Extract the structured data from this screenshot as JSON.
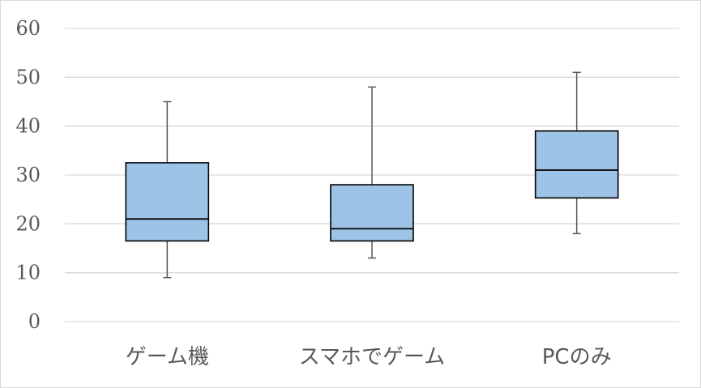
{
  "chart_data": {
    "type": "box",
    "categories": [
      "ゲーム機",
      "スマホでゲーム",
      "PCのみ"
    ],
    "series": [
      {
        "boxes": [
          {
            "category": "ゲーム機",
            "min": 9,
            "q1": 16.5,
            "median": 21,
            "q3": 32.5,
            "max": 45
          },
          {
            "category": "スマホでゲーム",
            "min": 13,
            "q1": 16.5,
            "median": 19,
            "q3": 28,
            "max": 48
          },
          {
            "category": "PCのみ",
            "min": 18,
            "q1": 25.3,
            "median": 31,
            "q3": 39,
            "max": 51
          }
        ]
      }
    ],
    "y_ticks": [
      "0",
      "10",
      "20",
      "30",
      "40",
      "50",
      "60"
    ],
    "ylim": [
      0,
      60
    ],
    "grid": true,
    "legend": "none",
    "colors": {
      "box_fill": "#9dc3e6",
      "box_stroke": "#000000",
      "whisker": "#595959",
      "grid": "#d9d9d9"
    }
  }
}
